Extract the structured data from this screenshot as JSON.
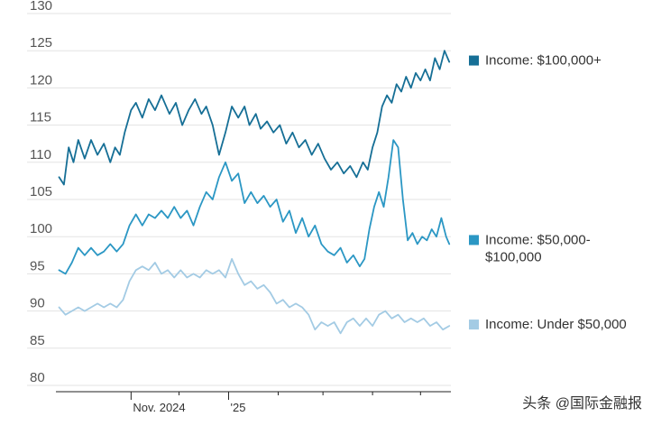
{
  "chart_data": {
    "type": "line",
    "title": "",
    "xlabel": "",
    "ylabel": "",
    "ylim": [
      80,
      130
    ],
    "xlim": [
      "2024-09-15",
      "2025-05-20"
    ],
    "y_ticks": [
      "80",
      "85",
      "90",
      "95",
      "100",
      "105",
      "110",
      "115",
      "120",
      "125",
      "130"
    ],
    "x_tick_labels": [
      {
        "date": "2024-11-01",
        "label": "Nov. 2024"
      },
      {
        "date": "2025-01-01",
        "label": "'25"
      }
    ],
    "x_minor_ticks": [
      "2024-12-01",
      "2025-02-01",
      "2025-03-01",
      "2025-04-01",
      "2025-05-01"
    ],
    "grid": true,
    "legend_placement": "right, beside each line",
    "series": [
      {
        "name": "Income: $100,000+",
        "color": "#166f96",
        "points": [
          [
            "2024-09-17",
            108
          ],
          [
            "2024-09-20",
            107
          ],
          [
            "2024-09-23",
            112
          ],
          [
            "2024-09-26",
            110
          ],
          [
            "2024-09-29",
            113
          ],
          [
            "2024-10-03",
            110.5
          ],
          [
            "2024-10-07",
            113
          ],
          [
            "2024-10-11",
            111
          ],
          [
            "2024-10-15",
            112.5
          ],
          [
            "2024-10-19",
            110
          ],
          [
            "2024-10-22",
            112
          ],
          [
            "2024-10-25",
            111
          ],
          [
            "2024-10-28",
            114
          ],
          [
            "2024-11-01",
            117
          ],
          [
            "2024-11-04",
            118
          ],
          [
            "2024-11-08",
            116
          ],
          [
            "2024-11-12",
            118.5
          ],
          [
            "2024-11-16",
            117
          ],
          [
            "2024-11-20",
            119
          ],
          [
            "2024-11-25",
            116.5
          ],
          [
            "2024-11-29",
            118
          ],
          [
            "2024-12-03",
            115
          ],
          [
            "2024-12-07",
            117
          ],
          [
            "2024-12-11",
            118.5
          ],
          [
            "2024-12-15",
            116.5
          ],
          [
            "2024-12-18",
            117.5
          ],
          [
            "2024-12-22",
            115
          ],
          [
            "2024-12-26",
            111
          ],
          [
            "2024-12-30",
            114
          ],
          [
            "2025-01-03",
            117.5
          ],
          [
            "2025-01-07",
            116
          ],
          [
            "2025-01-11",
            117.5
          ],
          [
            "2025-01-14",
            115
          ],
          [
            "2025-01-18",
            116.5
          ],
          [
            "2025-01-21",
            114.5
          ],
          [
            "2025-01-25",
            115.5
          ],
          [
            "2025-01-29",
            114
          ],
          [
            "2025-02-02",
            115
          ],
          [
            "2025-02-06",
            112.5
          ],
          [
            "2025-02-10",
            114
          ],
          [
            "2025-02-14",
            112
          ],
          [
            "2025-02-18",
            113
          ],
          [
            "2025-02-22",
            111
          ],
          [
            "2025-02-26",
            112.5
          ],
          [
            "2025-03-02",
            110.5
          ],
          [
            "2025-03-06",
            109
          ],
          [
            "2025-03-10",
            110
          ],
          [
            "2025-03-14",
            108.5
          ],
          [
            "2025-03-18",
            109.5
          ],
          [
            "2025-03-22",
            108
          ],
          [
            "2025-03-26",
            110
          ],
          [
            "2025-03-29",
            109
          ],
          [
            "2025-04-01",
            112
          ],
          [
            "2025-04-04",
            114
          ],
          [
            "2025-04-07",
            117.5
          ],
          [
            "2025-04-10",
            119
          ],
          [
            "2025-04-13",
            118
          ],
          [
            "2025-04-16",
            120.5
          ],
          [
            "2025-04-19",
            119.5
          ],
          [
            "2025-04-22",
            121.5
          ],
          [
            "2025-04-25",
            120
          ],
          [
            "2025-04-28",
            122
          ],
          [
            "2025-05-01",
            121
          ],
          [
            "2025-05-04",
            122.5
          ],
          [
            "2025-05-07",
            121
          ],
          [
            "2025-05-10",
            124
          ],
          [
            "2025-05-13",
            122.5
          ],
          [
            "2025-05-16",
            125
          ],
          [
            "2025-05-19",
            123.5
          ]
        ]
      },
      {
        "name": "Income: $50,000-$100,000",
        "label_lines": [
          "Income: $50,000-",
          "$100,000"
        ],
        "color": "#2b97c4",
        "points": [
          [
            "2024-09-17",
            95.5
          ],
          [
            "2024-09-21",
            95
          ],
          [
            "2024-09-25",
            96.5
          ],
          [
            "2024-09-29",
            98.5
          ],
          [
            "2024-10-03",
            97.5
          ],
          [
            "2024-10-07",
            98.5
          ],
          [
            "2024-10-11",
            97.5
          ],
          [
            "2024-10-15",
            98
          ],
          [
            "2024-10-19",
            99
          ],
          [
            "2024-10-23",
            98
          ],
          [
            "2024-10-27",
            99
          ],
          [
            "2024-10-31",
            101.5
          ],
          [
            "2024-11-04",
            103
          ],
          [
            "2024-11-08",
            101.5
          ],
          [
            "2024-11-12",
            103
          ],
          [
            "2024-11-16",
            102.5
          ],
          [
            "2024-11-20",
            103.5
          ],
          [
            "2024-11-24",
            102.5
          ],
          [
            "2024-11-28",
            104
          ],
          [
            "2024-12-02",
            102.5
          ],
          [
            "2024-12-06",
            103.5
          ],
          [
            "2024-12-10",
            101.5
          ],
          [
            "2024-12-14",
            104
          ],
          [
            "2024-12-18",
            106
          ],
          [
            "2024-12-22",
            105
          ],
          [
            "2024-12-26",
            108
          ],
          [
            "2024-12-30",
            110
          ],
          [
            "2025-01-03",
            107.5
          ],
          [
            "2025-01-07",
            108.5
          ],
          [
            "2025-01-11",
            104.5
          ],
          [
            "2025-01-15",
            106
          ],
          [
            "2025-01-19",
            104.5
          ],
          [
            "2025-01-23",
            105.5
          ],
          [
            "2025-01-27",
            104
          ],
          [
            "2025-01-31",
            105
          ],
          [
            "2025-02-04",
            102
          ],
          [
            "2025-02-08",
            103.5
          ],
          [
            "2025-02-12",
            100.5
          ],
          [
            "2025-02-16",
            102.5
          ],
          [
            "2025-02-20",
            100
          ],
          [
            "2025-02-24",
            101.5
          ],
          [
            "2025-02-28",
            99
          ],
          [
            "2025-03-04",
            98
          ],
          [
            "2025-03-08",
            97.5
          ],
          [
            "2025-03-12",
            98.5
          ],
          [
            "2025-03-16",
            96.5
          ],
          [
            "2025-03-20",
            97.5
          ],
          [
            "2025-03-24",
            96
          ],
          [
            "2025-03-27",
            97
          ],
          [
            "2025-03-30",
            101
          ],
          [
            "2025-04-02",
            104
          ],
          [
            "2025-04-05",
            106
          ],
          [
            "2025-04-08",
            104
          ],
          [
            "2025-04-11",
            108
          ],
          [
            "2025-04-14",
            113
          ],
          [
            "2025-04-17",
            112
          ],
          [
            "2025-04-20",
            105
          ],
          [
            "2025-04-23",
            99.5
          ],
          [
            "2025-04-26",
            100.5
          ],
          [
            "2025-04-29",
            99
          ],
          [
            "2025-05-02",
            100
          ],
          [
            "2025-05-05",
            99.5
          ],
          [
            "2025-05-08",
            101
          ],
          [
            "2025-05-11",
            100
          ],
          [
            "2025-05-14",
            102.5
          ],
          [
            "2025-05-17",
            100
          ],
          [
            "2025-05-19",
            99
          ]
        ]
      },
      {
        "name": "Income: Under $50,000",
        "color": "#a3cbe4",
        "points": [
          [
            "2024-09-17",
            90.5
          ],
          [
            "2024-09-21",
            89.5
          ],
          [
            "2024-09-25",
            90
          ],
          [
            "2024-09-29",
            90.5
          ],
          [
            "2024-10-03",
            90
          ],
          [
            "2024-10-07",
            90.5
          ],
          [
            "2024-10-11",
            91
          ],
          [
            "2024-10-15",
            90.5
          ],
          [
            "2024-10-19",
            91
          ],
          [
            "2024-10-23",
            90.5
          ],
          [
            "2024-10-27",
            91.5
          ],
          [
            "2024-10-31",
            94
          ],
          [
            "2024-11-04",
            95.5
          ],
          [
            "2024-11-08",
            96
          ],
          [
            "2024-11-12",
            95.5
          ],
          [
            "2024-11-16",
            96.5
          ],
          [
            "2024-11-20",
            95
          ],
          [
            "2024-11-24",
            95.5
          ],
          [
            "2024-11-28",
            94.5
          ],
          [
            "2024-12-02",
            95.5
          ],
          [
            "2024-12-06",
            94.5
          ],
          [
            "2024-12-10",
            95
          ],
          [
            "2024-12-14",
            94.5
          ],
          [
            "2024-12-18",
            95.5
          ],
          [
            "2024-12-22",
            95
          ],
          [
            "2024-12-26",
            95.5
          ],
          [
            "2024-12-30",
            94.5
          ],
          [
            "2025-01-03",
            97
          ],
          [
            "2025-01-07",
            95
          ],
          [
            "2025-01-11",
            93.5
          ],
          [
            "2025-01-15",
            94
          ],
          [
            "2025-01-19",
            93
          ],
          [
            "2025-01-23",
            93.5
          ],
          [
            "2025-01-27",
            92.5
          ],
          [
            "2025-01-31",
            91
          ],
          [
            "2025-02-04",
            91.5
          ],
          [
            "2025-02-08",
            90.5
          ],
          [
            "2025-02-12",
            91
          ],
          [
            "2025-02-16",
            90.5
          ],
          [
            "2025-02-20",
            89.5
          ],
          [
            "2025-02-24",
            87.5
          ],
          [
            "2025-02-28",
            88.5
          ],
          [
            "2025-03-04",
            88
          ],
          [
            "2025-03-08",
            88.5
          ],
          [
            "2025-03-12",
            87
          ],
          [
            "2025-03-16",
            88.5
          ],
          [
            "2025-03-20",
            89
          ],
          [
            "2025-03-24",
            88
          ],
          [
            "2025-03-28",
            89
          ],
          [
            "2025-04-01",
            88
          ],
          [
            "2025-04-05",
            89.5
          ],
          [
            "2025-04-09",
            90
          ],
          [
            "2025-04-13",
            89
          ],
          [
            "2025-04-17",
            89.5
          ],
          [
            "2025-04-21",
            88.5
          ],
          [
            "2025-04-25",
            89
          ],
          [
            "2025-04-29",
            88.5
          ],
          [
            "2025-05-03",
            89
          ],
          [
            "2025-05-07",
            88
          ],
          [
            "2025-05-11",
            88.5
          ],
          [
            "2025-05-15",
            87.5
          ],
          [
            "2025-05-19",
            88
          ]
        ]
      }
    ]
  },
  "watermark": {
    "text": "头条 @国际金融报"
  }
}
